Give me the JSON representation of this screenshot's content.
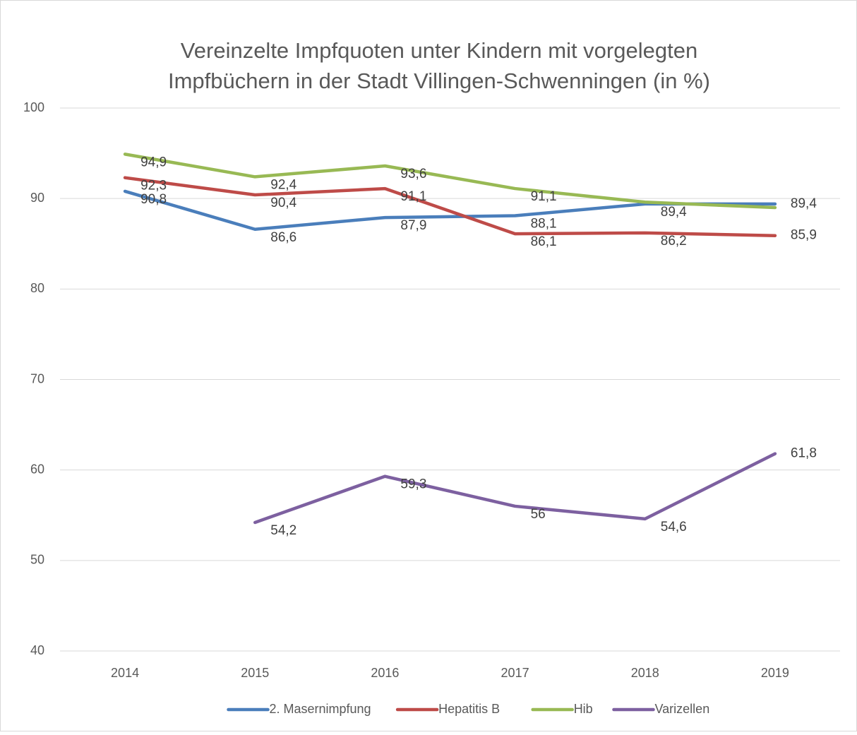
{
  "chart_data": {
    "type": "line",
    "title": [
      "Vereinzelte Impfquoten unter Kindern mit vorgelegten",
      "Impfbüchern in der Stadt Villingen-Schwenningen (in %)"
    ],
    "categories": [
      "2014",
      "2015",
      "2016",
      "2017",
      "2018",
      "2019"
    ],
    "series": [
      {
        "name": "2. Masernimpfung",
        "color": "#4a7ebb",
        "values": [
          90.8,
          86.6,
          87.9,
          88.1,
          89.4,
          89.4
        ],
        "value_labels": [
          "90,8",
          "86,6",
          "87,9",
          "88,1",
          "89,4",
          "89,4"
        ]
      },
      {
        "name": "Hepatitis B",
        "color": "#be4b48",
        "values": [
          92.3,
          90.4,
          91.1,
          86.1,
          86.2,
          85.9
        ],
        "value_labels": [
          "92,3",
          "90,4",
          "91,1",
          "86,1",
          "86,2",
          "85,9"
        ]
      },
      {
        "name": "Hib",
        "color": "#98b954",
        "values": [
          94.9,
          92.4,
          93.6,
          91.1,
          89.6,
          89.0
        ],
        "value_labels": [
          "94,9",
          "92,4",
          "93,6",
          "91,1",
          null,
          null
        ]
      },
      {
        "name": "Varizellen",
        "color": "#7d60a0",
        "values": [
          null,
          54.2,
          59.3,
          56,
          54.6,
          61.8
        ],
        "value_labels": [
          null,
          "54,2",
          "59,3",
          "56",
          "54,6",
          "61,8"
        ]
      }
    ],
    "ylim": [
      40,
      100
    ],
    "yticks": [
      40,
      50,
      60,
      70,
      80,
      90,
      100
    ],
    "grid": true,
    "legend": "bottom"
  }
}
